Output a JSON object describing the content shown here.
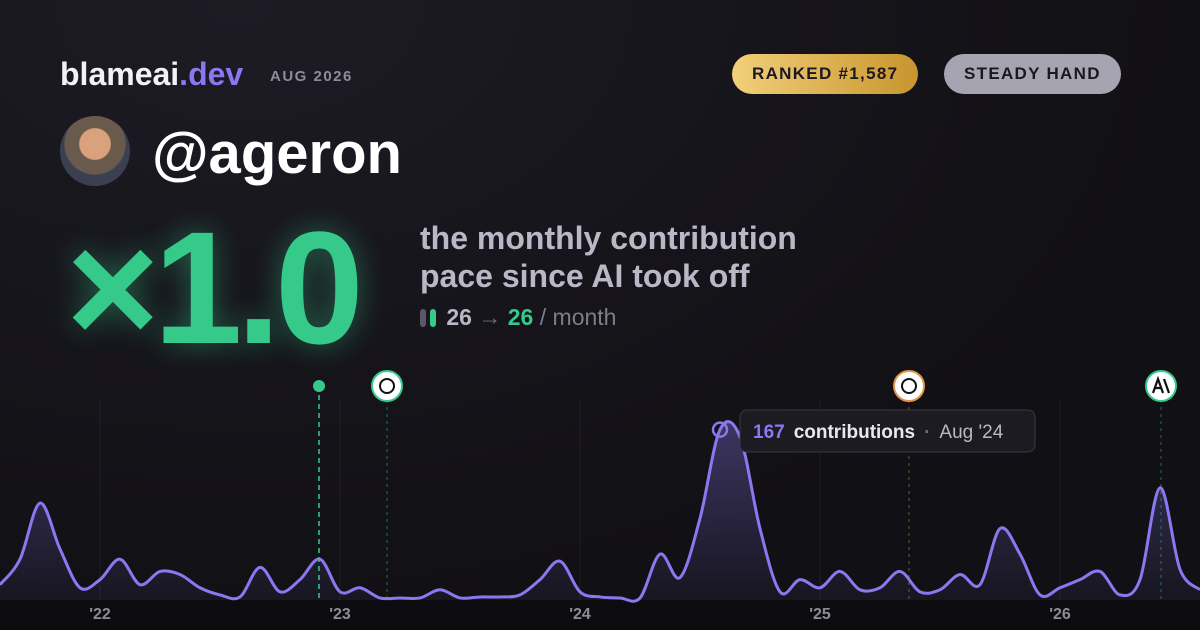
{
  "brand": {
    "name": "blameai",
    "tld": ".dev",
    "date": "AUG 2026"
  },
  "badges": [
    "RANKED #1,587",
    "STEADY HAND"
  ],
  "user": {
    "handle": "@ageron"
  },
  "headline": {
    "multiplier": "×1.0",
    "line1": "the monthly contribution",
    "line2": "pace since AI took off",
    "before": "26",
    "arrow": "→",
    "after": "26",
    "unit": "/ month"
  },
  "chart_data": {
    "type": "area",
    "color": "#8b78f0",
    "categories": [
      null,
      null,
      null,
      null,
      null,
      "'22",
      null,
      null,
      null,
      null,
      null,
      null,
      null,
      null,
      null,
      null,
      null,
      "'23",
      null,
      null,
      null,
      null,
      null,
      null,
      null,
      null,
      null,
      null,
      null,
      "'24",
      null,
      null,
      null,
      null,
      null,
      null,
      null,
      null,
      null,
      null,
      null,
      "'25",
      null,
      null,
      null,
      null,
      null,
      null,
      null,
      null,
      null,
      null,
      null,
      "'26",
      null,
      null,
      null,
      null,
      null,
      null,
      null
    ],
    "values": [
      15,
      40,
      95,
      50,
      12,
      20,
      40,
      15,
      28,
      25,
      12,
      5,
      3,
      32,
      8,
      20,
      40,
      8,
      12,
      2,
      2,
      2,
      10,
      2,
      3,
      3,
      5,
      20,
      38,
      8,
      3,
      2,
      2,
      45,
      22,
      80,
      167,
      160,
      70,
      8,
      20,
      12,
      28,
      10,
      12,
      28,
      8,
      10,
      25,
      15,
      70,
      45,
      5,
      12,
      20,
      28,
      5,
      20,
      110,
      30,
      10
    ],
    "tooltip": {
      "unit": "contributions",
      "date": "Aug '24"
    }
  }
}
